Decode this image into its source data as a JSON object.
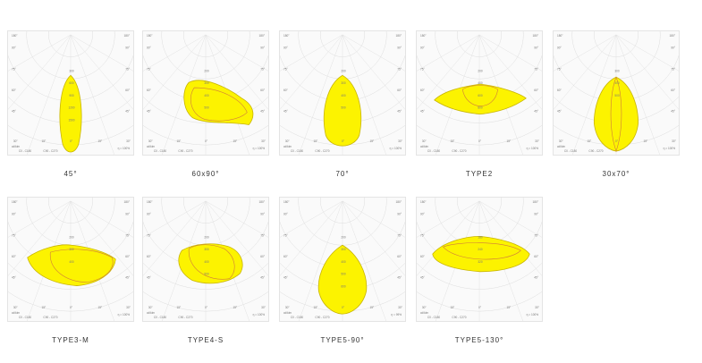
{
  "scale_marks": {
    "left_top": "180°",
    "right_top": "180°",
    "angles": [
      "90°",
      "75°",
      "60°",
      "45°"
    ],
    "bottom": [
      "30°",
      "15°",
      "0°",
      "15°",
      "30°"
    ]
  },
  "legend": {
    "unit": "cd/klm",
    "c0": "C0 - C180",
    "c90": "C90 - C270"
  },
  "cards": [
    {
      "caption": "45°",
      "eta": "η = 100%",
      "rings": [
        "300",
        "600",
        "900",
        "1200",
        "1500"
      ]
    },
    {
      "caption": "60x90°",
      "eta": "η = 100%",
      "rings": [
        "200",
        "300",
        "400",
        "500"
      ]
    },
    {
      "caption": "70°",
      "eta": "η = 100%",
      "rings": [
        "200",
        "300",
        "400",
        "500"
      ]
    },
    {
      "caption": "TYPE2",
      "eta": "η = 100%",
      "rings": [
        "200",
        "400",
        "600",
        "800"
      ]
    },
    {
      "caption": "30x70°",
      "eta": "η = 100%",
      "rings": [
        "300",
        "400",
        "500"
      ]
    },
    {
      "caption": "TYPE3-M",
      "eta": "η = 100%",
      "rings": [
        "200",
        "300",
        "400"
      ]
    },
    {
      "caption": "TYPE4-S",
      "eta": "η = 100%",
      "rings": [
        "200",
        "300",
        "400",
        "500"
      ]
    },
    {
      "caption": "TYPE5-90°",
      "eta": "η = 99%",
      "rings": [
        "200",
        "300",
        "400",
        "500",
        "600"
      ]
    },
    {
      "caption": "TYPE5-130°",
      "eta": "η = 100%",
      "rings": [
        "180",
        "240",
        "320"
      ]
    }
  ]
}
